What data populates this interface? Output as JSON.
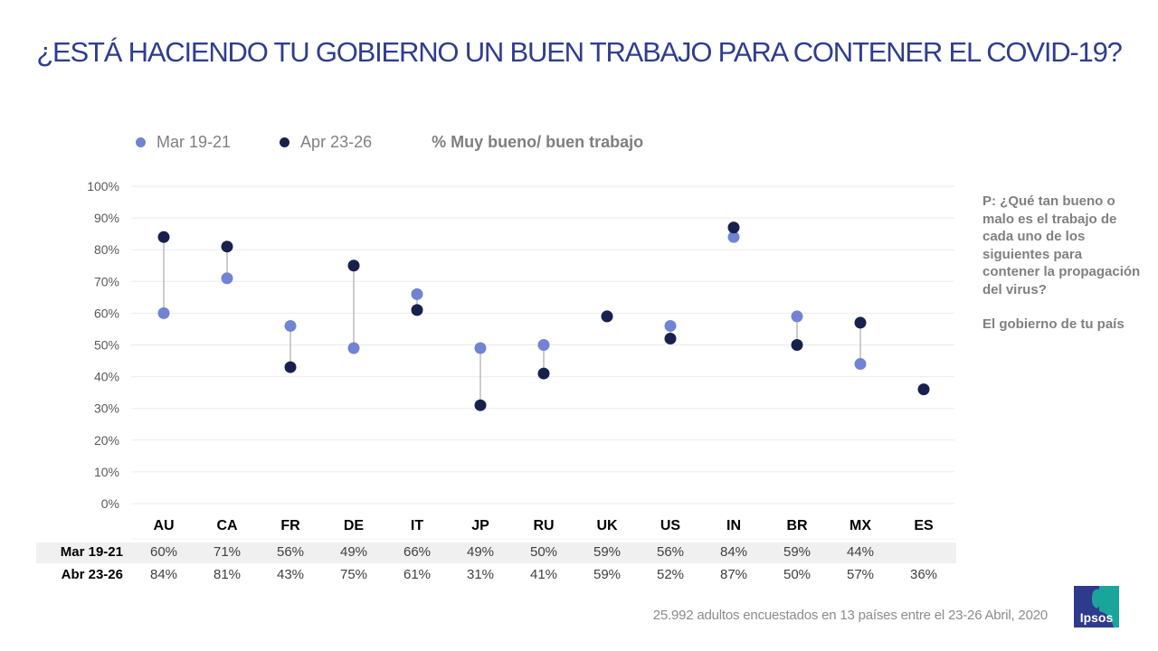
{
  "title": "¿ESTÁ HACIENDO TU GOBIERNO UN BUEN TRABAJO PARA CONTENER EL COVID-19?",
  "legend": {
    "series": [
      {
        "label": "Mar 19-21",
        "color": "#7183d2"
      },
      {
        "label": "Apr 23-26",
        "color": "#17214e"
      }
    ],
    "measure": "% Muy bueno/ buen trabajo"
  },
  "sidenote": {
    "question": "P: ¿Qué tan bueno o malo es el trabajo de cada uno de los siguientes para contener la propagación del virus?",
    "subject": "El gobierno de tu país"
  },
  "chart_data": {
    "type": "scatter",
    "subtype": "dumbbell",
    "title": "¿ESTÁ HACIENDO TU GOBIERNO UN BUEN TRABAJO PARA CONTENER EL COVID-19?",
    "ylabel": "% Muy bueno/ buen trabajo",
    "xlabel": "",
    "ylim": [
      0,
      100
    ],
    "yticks": [
      "0%",
      "10%",
      "20%",
      "30%",
      "40%",
      "50%",
      "60%",
      "70%",
      "80%",
      "90%",
      "100%"
    ],
    "grid": true,
    "legend_position": "top-left",
    "categories": [
      "AU",
      "CA",
      "FR",
      "DE",
      "IT",
      "JP",
      "RU",
      "UK",
      "US",
      "IN",
      "BR",
      "MX",
      "ES"
    ],
    "series": [
      {
        "name": "Mar 19-21",
        "color": "#7183d2",
        "values": [
          60,
          71,
          56,
          49,
          66,
          49,
          50,
          59,
          56,
          84,
          59,
          44,
          null
        ]
      },
      {
        "name": "Apr 23-26",
        "color": "#17214e",
        "values": [
          84,
          81,
          43,
          75,
          61,
          31,
          41,
          59,
          52,
          87,
          50,
          57,
          36
        ]
      }
    ]
  },
  "table": {
    "rows": [
      {
        "label": "Mar 19-21",
        "cells": [
          "60%",
          "71%",
          "56%",
          "49%",
          "66%",
          "49%",
          "50%",
          "59%",
          "56%",
          "84%",
          "59%",
          "44%",
          ""
        ]
      },
      {
        "label": "Abr 23-26",
        "cells": [
          "84%",
          "81%",
          "43%",
          "75%",
          "61%",
          "31%",
          "41%",
          "59%",
          "52%",
          "87%",
          "50%",
          "57%",
          "36%"
        ]
      }
    ]
  },
  "footer": "25.992 adultos encuestados en 13 países entre el  23-26 Abril, 2020",
  "logo": {
    "text": "Ipsos",
    "icon": "ipsos-logo-icon"
  }
}
